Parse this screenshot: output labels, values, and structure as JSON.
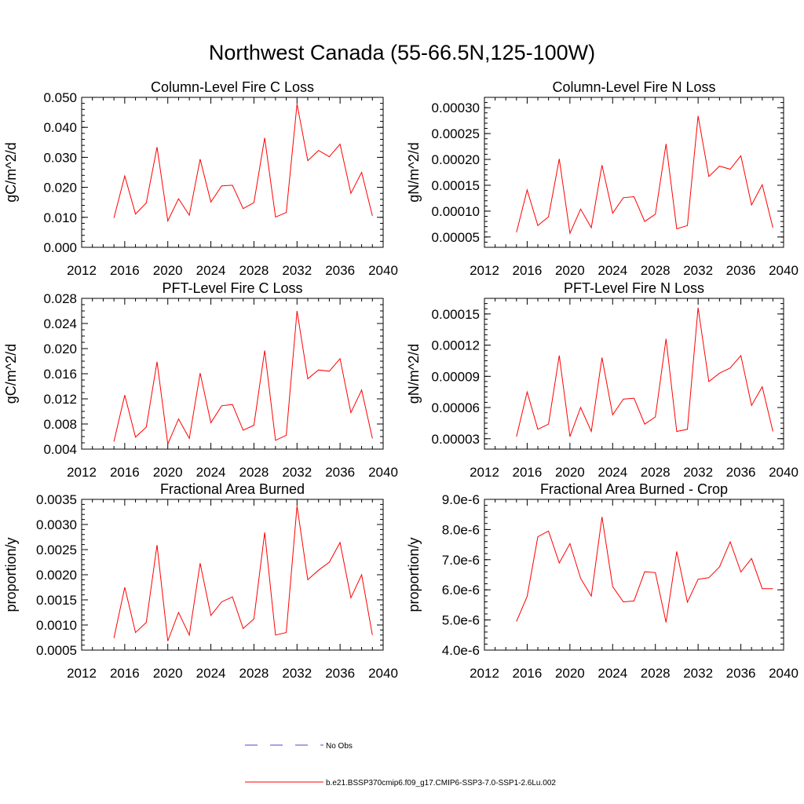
{
  "page_title": "Northwest Canada (55-66.5N,125-100W)",
  "legend": {
    "obs_label": "No Obs",
    "model_label": "b.e21.BSSP370cmip6.f09_g17.CMIP6-SSP3-7.0-SSP1-2.6Lu.002",
    "obs_color": "#4a4ad0",
    "model_color": "#ff0000"
  },
  "chart_data": [
    {
      "type": "line",
      "title": "Column-Level Fire C Loss",
      "xlabel": "",
      "ylabel": "gC/m^2/d",
      "xlim": [
        2012,
        2040
      ],
      "ylim": [
        0.0,
        0.05
      ],
      "x_ticks": [
        "2012",
        "2016",
        "2020",
        "2024",
        "2028",
        "2032",
        "2036",
        "2040"
      ],
      "y_ticks": [
        "0.000",
        "0.010",
        "0.020",
        "0.030",
        "0.040",
        "0.050"
      ],
      "y_tick_values": [
        0.0,
        0.01,
        0.02,
        0.03,
        0.04,
        0.05
      ],
      "y_minor_step": 0.002,
      "x": [
        2015,
        2016,
        2017,
        2018,
        2019,
        2020,
        2021,
        2022,
        2023,
        2024,
        2025,
        2026,
        2027,
        2028,
        2029,
        2030,
        2031,
        2032,
        2033,
        2034,
        2035,
        2036,
        2037,
        2038,
        2039
      ],
      "series": [
        {
          "values": [
            0.0098,
            0.0238,
            0.0111,
            0.0148,
            0.0334,
            0.0088,
            0.0162,
            0.0107,
            0.0294,
            0.0151,
            0.0205,
            0.0207,
            0.0129,
            0.0149,
            0.0365,
            0.0101,
            0.0116,
            0.0478,
            0.0289,
            0.0323,
            0.0302,
            0.0344,
            0.018,
            0.025,
            0.0105
          ]
        }
      ]
    },
    {
      "type": "line",
      "title": "Column-Level Fire N Loss",
      "xlabel": "",
      "ylabel": "gN/m^2/d",
      "xlim": [
        2012,
        2040
      ],
      "ylim": [
        3e-05,
        0.00032
      ],
      "x_ticks": [
        "2012",
        "2016",
        "2020",
        "2024",
        "2028",
        "2032",
        "2036",
        "2040"
      ],
      "y_ticks": [
        "0.00005",
        "0.00010",
        "0.00015",
        "0.00020",
        "0.00025",
        "0.00030"
      ],
      "y_tick_values": [
        5e-05,
        0.0001,
        0.00015,
        0.0002,
        0.00025,
        0.0003
      ],
      "y_minor_step": 1e-05,
      "x": [
        2015,
        2016,
        2017,
        2018,
        2019,
        2020,
        2021,
        2022,
        2023,
        2024,
        2025,
        2026,
        2027,
        2028,
        2029,
        2030,
        2031,
        2032,
        2033,
        2034,
        2035,
        2036,
        2037,
        2038,
        2039
      ],
      "series": [
        {
          "values": [
            5.9e-05,
            0.000141,
            7.2e-05,
            8.9e-05,
            0.000201,
            5.7e-05,
            0.000104,
            6.8e-05,
            0.000189,
            9.6e-05,
            0.000126,
            0.000128,
            8e-05,
            9.4e-05,
            0.00023,
            6.6e-05,
            7.2e-05,
            0.000284,
            0.000167,
            0.000187,
            0.000181,
            0.000207,
            0.000112,
            0.000151,
            6.8e-05
          ]
        }
      ]
    },
    {
      "type": "line",
      "title": "PFT-Level Fire C Loss",
      "xlabel": "",
      "ylabel": "gC/m^2/d",
      "xlim": [
        2012,
        2040
      ],
      "ylim": [
        0.004,
        0.028
      ],
      "x_ticks": [
        "2012",
        "2016",
        "2020",
        "2024",
        "2028",
        "2032",
        "2036",
        "2040"
      ],
      "y_ticks": [
        "0.004",
        "0.008",
        "0.012",
        "0.016",
        "0.020",
        "0.024",
        "0.028"
      ],
      "y_tick_values": [
        0.004,
        0.008,
        0.012,
        0.016,
        0.02,
        0.024,
        0.028
      ],
      "y_minor_step": 0.001,
      "x": [
        2015,
        2016,
        2017,
        2018,
        2019,
        2020,
        2021,
        2022,
        2023,
        2024,
        2025,
        2026,
        2027,
        2028,
        2029,
        2030,
        2031,
        2032,
        2033,
        2034,
        2035,
        2036,
        2037,
        2038,
        2039
      ],
      "series": [
        {
          "values": [
            0.0052,
            0.0126,
            0.0059,
            0.0075,
            0.0179,
            0.0048,
            0.0088,
            0.0057,
            0.0161,
            0.0082,
            0.0109,
            0.0111,
            0.007,
            0.0078,
            0.0197,
            0.0054,
            0.0062,
            0.026,
            0.0152,
            0.0166,
            0.0164,
            0.0184,
            0.0098,
            0.0134,
            0.0057
          ]
        }
      ]
    },
    {
      "type": "line",
      "title": "PFT-Level Fire N Loss",
      "xlabel": "",
      "ylabel": "gN/m^2/d",
      "xlim": [
        2012,
        2040
      ],
      "ylim": [
        2e-05,
        0.000165
      ],
      "x_ticks": [
        "2012",
        "2016",
        "2020",
        "2024",
        "2028",
        "2032",
        "2036",
        "2040"
      ],
      "y_ticks": [
        "0.00003",
        "0.00006",
        "0.00009",
        "0.00012",
        "0.00015"
      ],
      "y_tick_values": [
        3e-05,
        6e-05,
        9e-05,
        0.00012,
        0.00015
      ],
      "y_minor_step": 5e-06,
      "x": [
        2015,
        2016,
        2017,
        2018,
        2019,
        2020,
        2021,
        2022,
        2023,
        2024,
        2025,
        2026,
        2027,
        2028,
        2029,
        2030,
        2031,
        2032,
        2033,
        2034,
        2035,
        2036,
        2037,
        2038,
        2039
      ],
      "series": [
        {
          "values": [
            3.2e-05,
            7.5e-05,
            3.9e-05,
            4.4e-05,
            0.00011,
            3.2e-05,
            6e-05,
            3.7e-05,
            0.000108,
            5.3e-05,
            6.8e-05,
            6.9e-05,
            4.4e-05,
            5.1e-05,
            0.000126,
            3.7e-05,
            3.9e-05,
            0.000156,
            8.5e-05,
            9.3e-05,
            9.8e-05,
            0.00011,
            6.2e-05,
            8e-05,
            3.7e-05
          ]
        }
      ]
    },
    {
      "type": "line",
      "title": "Fractional Area Burned",
      "xlabel": "",
      "ylabel": "proportion/y",
      "xlim": [
        2012,
        2040
      ],
      "ylim": [
        0.0005,
        0.0035
      ],
      "x_ticks": [
        "2012",
        "2016",
        "2020",
        "2024",
        "2028",
        "2032",
        "2036",
        "2040"
      ],
      "y_ticks": [
        "0.0005",
        "0.0010",
        "0.0015",
        "0.0020",
        "0.0025",
        "0.0030",
        "0.0035"
      ],
      "y_tick_values": [
        0.0005,
        0.001,
        0.0015,
        0.002,
        0.0025,
        0.003,
        0.0035
      ],
      "y_minor_step": 0.0001,
      "x": [
        2015,
        2016,
        2017,
        2018,
        2019,
        2020,
        2021,
        2022,
        2023,
        2024,
        2025,
        2026,
        2027,
        2028,
        2029,
        2030,
        2031,
        2032,
        2033,
        2034,
        2035,
        2036,
        2037,
        2038,
        2039
      ],
      "series": [
        {
          "values": [
            0.00074,
            0.00175,
            0.00085,
            0.00105,
            0.00259,
            0.00068,
            0.00125,
            0.0008,
            0.00223,
            0.00119,
            0.00146,
            0.00156,
            0.00093,
            0.00112,
            0.00284,
            0.0008,
            0.00085,
            0.00337,
            0.0019,
            0.00209,
            0.00225,
            0.00264,
            0.00154,
            0.002,
            0.0008
          ]
        }
      ]
    },
    {
      "type": "line",
      "title": "Fractional Area Burned - Crop",
      "xlabel": "",
      "ylabel": "proportion/y",
      "xlim": [
        2012,
        2040
      ],
      "ylim": [
        4e-06,
        9e-06
      ],
      "x_ticks": [
        "2012",
        "2016",
        "2020",
        "2024",
        "2028",
        "2032",
        "2036",
        "2040"
      ],
      "y_ticks": [
        "4.0e-6",
        "5.0e-6",
        "6.0e-6",
        "7.0e-6",
        "8.0e-6",
        "9.0e-6"
      ],
      "y_tick_values": [
        4e-06,
        5e-06,
        6e-06,
        7e-06,
        8e-06,
        9e-06
      ],
      "y_minor_step": 2e-07,
      "x": [
        2015,
        2016,
        2017,
        2018,
        2019,
        2020,
        2021,
        2022,
        2023,
        2024,
        2025,
        2026,
        2027,
        2028,
        2029,
        2030,
        2031,
        2032,
        2033,
        2034,
        2035,
        2036,
        2037,
        2038,
        2039
      ],
      "series": [
        {
          "values": [
            4.95e-06,
            5.78e-06,
            7.76e-06,
            7.95e-06,
            6.89e-06,
            7.53e-06,
            6.38e-06,
            5.79e-06,
            8.42e-06,
            6.11e-06,
            5.6e-06,
            5.63e-06,
            6.6e-06,
            6.57e-06,
            4.92e-06,
            7.27e-06,
            5.59e-06,
            6.35e-06,
            6.4e-06,
            6.76e-06,
            7.59e-06,
            6.59e-06,
            7.04e-06,
            6.04e-06,
            6.04e-06
          ]
        }
      ]
    }
  ]
}
